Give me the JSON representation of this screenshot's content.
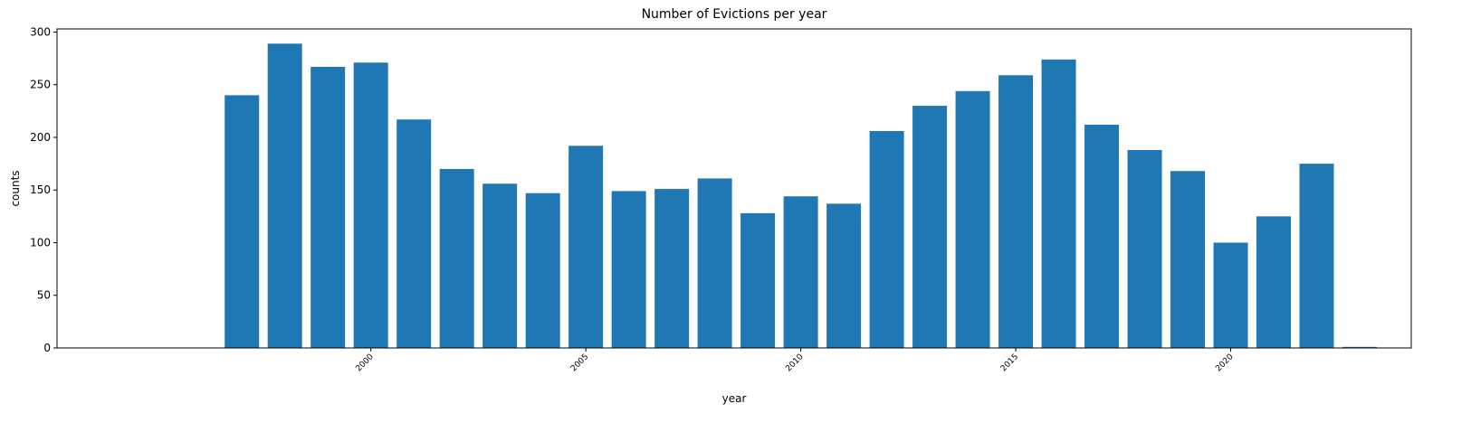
{
  "chart_data": {
    "type": "bar",
    "title": "Number of Evictions per year",
    "xlabel": "year",
    "ylabel": "counts",
    "x": [
      1997,
      1998,
      1999,
      2000,
      2001,
      2002,
      2003,
      2004,
      2005,
      2006,
      2007,
      2008,
      2009,
      2010,
      2011,
      2012,
      2013,
      2014,
      2015,
      2016,
      2017,
      2018,
      2019,
      2020,
      2021,
      2022,
      2023
    ],
    "values": [
      240,
      289,
      267,
      271,
      217,
      170,
      156,
      147,
      192,
      149,
      151,
      161,
      128,
      144,
      137,
      206,
      230,
      244,
      259,
      274,
      212,
      188,
      168,
      100,
      125,
      175,
      1
    ],
    "xlim": [
      1992.7,
      2024.2
    ],
    "ylim": [
      0,
      303
    ],
    "yticks": [
      0,
      50,
      100,
      150,
      200,
      250,
      300
    ],
    "xticks": [
      2000,
      2005,
      2010,
      2015,
      2020
    ],
    "xtick_labels": [
      "2000",
      "2005",
      "2010",
      "2015",
      "2020"
    ],
    "ytick_labels": [
      "0",
      "50",
      "100",
      "150",
      "200",
      "250",
      "300"
    ],
    "bar_color": "#1f77b4",
    "grid": false,
    "legend": "none"
  }
}
